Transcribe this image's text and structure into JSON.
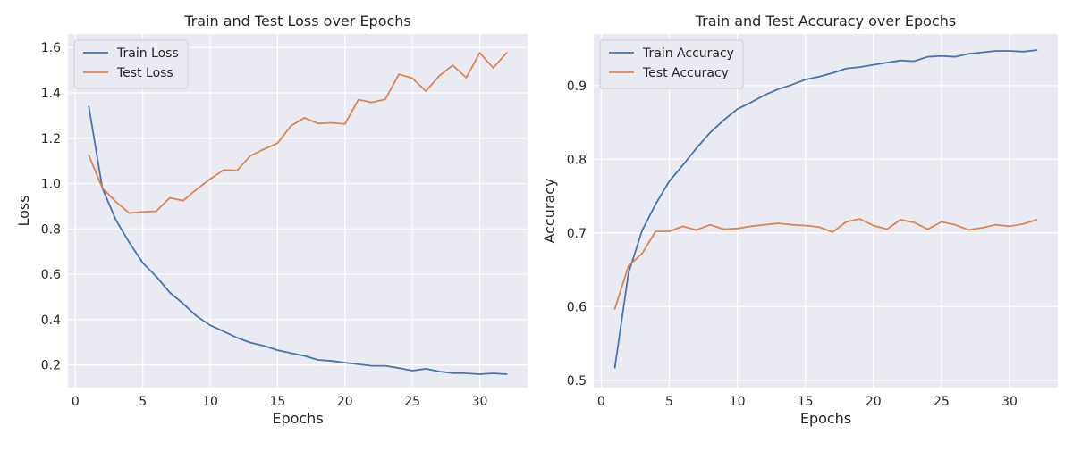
{
  "colors": {
    "train": "#4c72b0",
    "test": "#dd8452",
    "plot_bg": "#eaeaf2",
    "grid": "#ffffff",
    "legend_bg": "#eaeaf2",
    "legend_border": "#cccccc",
    "text": "#262626"
  },
  "chart_data": [
    {
      "type": "line",
      "title": "Train and Test Loss over Epochs",
      "xlabel": "Epochs",
      "ylabel": "Loss",
      "xlim": [
        -0.55,
        33.55
      ],
      "ylim": [
        0.1,
        1.66
      ],
      "xticks": [
        0,
        5,
        10,
        15,
        20,
        25,
        30
      ],
      "yticks": [
        0.2,
        0.4,
        0.6,
        0.8,
        1.0,
        1.2,
        1.4,
        1.6
      ],
      "ytick_format": 1,
      "grid": true,
      "legend_position": "upper left",
      "x": [
        1,
        2,
        3,
        4,
        5,
        6,
        7,
        8,
        9,
        10,
        11,
        12,
        13,
        14,
        15,
        16,
        17,
        18,
        19,
        20,
        21,
        22,
        23,
        24,
        25,
        26,
        27,
        28,
        29,
        30,
        31,
        32
      ],
      "series": [
        {
          "name": "Train Loss",
          "color_key": "train",
          "values": [
            1.34,
            0.98,
            0.84,
            0.74,
            0.65,
            0.59,
            0.52,
            0.47,
            0.415,
            0.375,
            0.348,
            0.32,
            0.298,
            0.284,
            0.265,
            0.252,
            0.24,
            0.222,
            0.218,
            0.21,
            0.203,
            0.196,
            0.196,
            0.186,
            0.175,
            0.183,
            0.171,
            0.164,
            0.163,
            0.159,
            0.163,
            0.159
          ]
        },
        {
          "name": "Test Loss",
          "color_key": "test",
          "values": [
            1.125,
            0.98,
            0.92,
            0.87,
            0.875,
            0.878,
            0.937,
            0.925,
            0.975,
            1.02,
            1.06,
            1.058,
            1.123,
            1.152,
            1.178,
            1.255,
            1.29,
            1.265,
            1.268,
            1.263,
            1.37,
            1.358,
            1.372,
            1.482,
            1.465,
            1.408,
            1.475,
            1.522,
            1.467,
            1.577,
            1.51,
            1.577
          ]
        }
      ]
    },
    {
      "type": "line",
      "title": "Train and Test Accuracy over Epochs",
      "xlabel": "Epochs",
      "ylabel": "Accuracy",
      "xlim": [
        -0.55,
        33.55
      ],
      "ylim": [
        0.49,
        0.97
      ],
      "xticks": [
        0,
        5,
        10,
        15,
        20,
        25,
        30
      ],
      "yticks": [
        0.5,
        0.6,
        0.7,
        0.8,
        0.9
      ],
      "ytick_format": 1,
      "grid": true,
      "legend_position": "upper left",
      "x": [
        1,
        2,
        3,
        4,
        5,
        6,
        7,
        8,
        9,
        10,
        11,
        12,
        13,
        14,
        15,
        16,
        17,
        18,
        19,
        20,
        21,
        22,
        23,
        24,
        25,
        26,
        27,
        28,
        29,
        30,
        31,
        32
      ],
      "series": [
        {
          "name": "Train Accuracy",
          "color_key": "train",
          "values": [
            0.517,
            0.645,
            0.703,
            0.739,
            0.77,
            0.792,
            0.815,
            0.836,
            0.853,
            0.868,
            0.877,
            0.887,
            0.895,
            0.901,
            0.908,
            0.912,
            0.917,
            0.923,
            0.925,
            0.928,
            0.931,
            0.934,
            0.933,
            0.939,
            0.94,
            0.939,
            0.943,
            0.945,
            0.947,
            0.947,
            0.946,
            0.948
          ]
        },
        {
          "name": "Test Accuracy",
          "color_key": "test",
          "values": [
            0.597,
            0.655,
            0.672,
            0.702,
            0.702,
            0.709,
            0.704,
            0.711,
            0.705,
            0.706,
            0.709,
            0.711,
            0.713,
            0.711,
            0.71,
            0.708,
            0.701,
            0.715,
            0.719,
            0.71,
            0.705,
            0.718,
            0.714,
            0.705,
            0.715,
            0.711,
            0.704,
            0.707,
            0.711,
            0.709,
            0.712,
            0.718
          ]
        }
      ]
    }
  ]
}
